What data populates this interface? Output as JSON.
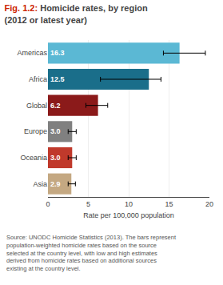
{
  "chart_data": {
    "type": "bar",
    "orientation": "horizontal",
    "title": "Homicide rates, by region\n(2012 or latest year)",
    "annotations": [
      "Fig. 1.2:",
      "Source: UNODC Homicide Statistics (2013). The bars represent population-weighted homicide rates based on the source selected at the country level, with low and high estimates derived from homicide rates based on additional sources existing at the country level."
    ],
    "xlabel": "Rate per 100,000 population",
    "categories": [
      "Americas",
      "Africa",
      "Global",
      "Europe",
      "Oceania",
      "Asia"
    ],
    "values": [
      16.3,
      12.5,
      6.2,
      3.0,
      3.0,
      2.9
    ],
    "value_labels": [
      "16.3",
      "12.5",
      "6.2",
      "3.0",
      "3.0",
      "2.9"
    ],
    "data_labels": true,
    "error_low": [
      2.0,
      6.0,
      1.5,
      0.5,
      0.5,
      0.4
    ],
    "error_high": [
      3.2,
      1.5,
      1.2,
      0.5,
      0.5,
      0.5
    ],
    "colors": [
      "#5bb8d4",
      "#1a6e8a",
      "#8b1a1a",
      "#808080",
      "#c0392b",
      "#c4a882"
    ],
    "xlim": [
      0,
      20
    ],
    "xticks": [
      0,
      5,
      10,
      15,
      20
    ],
    "grid": true
  }
}
